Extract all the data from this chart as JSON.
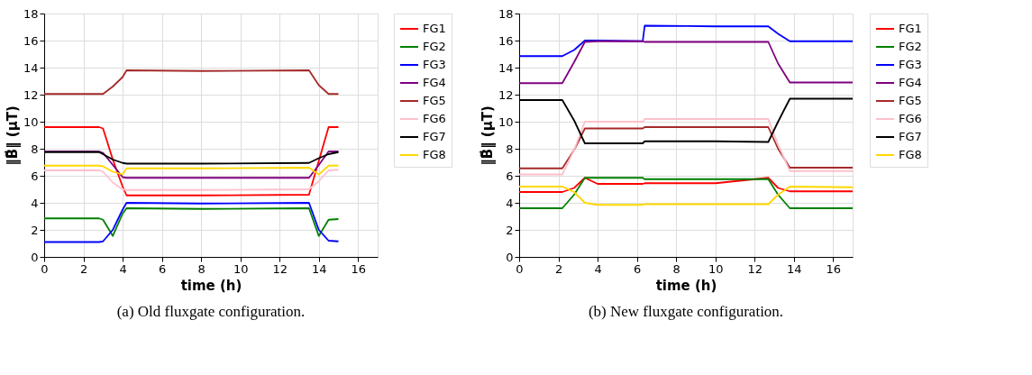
{
  "chart_data": [
    {
      "type": "line",
      "title": "(a) Old fluxgate configuration.",
      "xlabel": "time (h)",
      "ylabel": "‖B⃗‖ (μT)",
      "x": [
        0,
        2.8,
        3.0,
        3.5,
        4.0,
        4.2,
        8,
        13.5,
        14,
        14.5,
        15
      ],
      "xlim": [
        0,
        17
      ],
      "xticks": [
        0,
        2,
        4,
        6,
        8,
        10,
        12,
        14,
        16
      ],
      "ylim": [
        0,
        18
      ],
      "yticks": [
        0,
        2,
        4,
        6,
        8,
        10,
        12,
        14,
        16,
        18
      ],
      "grid": true,
      "legend": "right",
      "line_style": "solid",
      "marker": "none",
      "series": [
        {
          "name": "FG1",
          "color": "#ff0000",
          "values": [
            9.6,
            9.6,
            9.5,
            7.2,
            5.2,
            4.55,
            4.55,
            4.6,
            7.1,
            9.6,
            9.6
          ]
        },
        {
          "name": "FG2",
          "color": "#008000",
          "values": [
            2.85,
            2.85,
            2.75,
            1.55,
            3.2,
            3.6,
            3.55,
            3.6,
            1.55,
            2.75,
            2.8
          ]
        },
        {
          "name": "FG3",
          "color": "#0000ff",
          "values": [
            1.1,
            1.1,
            1.15,
            2.0,
            3.5,
            4.0,
            3.95,
            4.0,
            2.0,
            1.2,
            1.15
          ]
        },
        {
          "name": "FG4",
          "color": "#800080",
          "values": [
            7.8,
            7.8,
            7.7,
            6.8,
            5.9,
            5.85,
            5.85,
            5.85,
            6.8,
            7.8,
            7.8
          ]
        },
        {
          "name": "FG5",
          "color": "#a52a2a",
          "values": [
            12.05,
            12.05,
            12.05,
            12.6,
            13.3,
            13.8,
            13.75,
            13.8,
            12.7,
            12.05,
            12.05
          ]
        },
        {
          "name": "FG6",
          "color": "#ffc0cb",
          "values": [
            6.4,
            6.4,
            6.3,
            5.5,
            5.0,
            4.95,
            4.95,
            5.0,
            5.6,
            6.4,
            6.45
          ]
        },
        {
          "name": "FG7",
          "color": "#000000",
          "values": [
            7.75,
            7.75,
            7.6,
            7.2,
            6.95,
            6.9,
            6.9,
            6.95,
            7.3,
            7.6,
            7.75
          ]
        },
        {
          "name": "FG8",
          "color": "#ffd700",
          "values": [
            6.75,
            6.75,
            6.7,
            6.3,
            6.1,
            6.55,
            6.55,
            6.6,
            6.1,
            6.75,
            6.75
          ]
        }
      ]
    },
    {
      "type": "line",
      "title": "(b) New fluxgate configuration.",
      "xlabel": "time (h)",
      "ylabel": "‖B⃗‖ (μT)",
      "x": [
        0,
        2.2,
        2.8,
        3.35,
        4,
        6.3,
        6.4,
        10,
        12.7,
        13.2,
        13.8,
        17
      ],
      "xlim": [
        0,
        17
      ],
      "xticks": [
        0,
        2,
        4,
        6,
        8,
        10,
        12,
        14,
        16
      ],
      "ylim": [
        0,
        18
      ],
      "yticks": [
        0,
        2,
        4,
        6,
        8,
        10,
        12,
        14,
        16,
        18
      ],
      "grid": true,
      "legend": "right",
      "line_style": "solid",
      "marker": "none",
      "series": [
        {
          "name": "FG1",
          "color": "#ff0000",
          "values": [
            4.8,
            4.8,
            5.1,
            5.85,
            5.4,
            5.4,
            5.45,
            5.45,
            5.85,
            5.1,
            4.85,
            4.85
          ]
        },
        {
          "name": "FG2",
          "color": "#008000",
          "values": [
            3.6,
            3.6,
            4.6,
            5.85,
            5.85,
            5.85,
            5.75,
            5.75,
            5.75,
            4.6,
            3.6,
            3.6
          ]
        },
        {
          "name": "FG3",
          "color": "#0000ff",
          "values": [
            14.85,
            14.85,
            15.3,
            16.0,
            16.0,
            15.95,
            17.1,
            17.05,
            17.05,
            16.5,
            15.95,
            15.95
          ]
        },
        {
          "name": "FG4",
          "color": "#800080",
          "values": [
            12.85,
            12.85,
            14.4,
            15.9,
            15.95,
            15.95,
            15.9,
            15.9,
            15.9,
            14.3,
            12.9,
            12.9
          ]
        },
        {
          "name": "FG5",
          "color": "#a52a2a",
          "values": [
            6.55,
            6.55,
            7.9,
            9.5,
            9.5,
            9.5,
            9.6,
            9.6,
            9.6,
            8.0,
            6.6,
            6.6
          ]
        },
        {
          "name": "FG6",
          "color": "#ffc0cb",
          "values": [
            6.1,
            6.1,
            7.9,
            10.0,
            10.0,
            10.0,
            10.2,
            10.2,
            10.2,
            8.3,
            6.35,
            6.35
          ]
        },
        {
          "name": "FG7",
          "color": "#000000",
          "values": [
            11.6,
            11.6,
            10.1,
            8.4,
            8.4,
            8.4,
            8.55,
            8.55,
            8.5,
            10.0,
            11.7,
            11.7
          ]
        },
        {
          "name": "FG8",
          "color": "#ffd700",
          "values": [
            5.2,
            5.2,
            4.8,
            4.0,
            3.85,
            3.85,
            3.9,
            3.9,
            3.9,
            4.6,
            5.2,
            5.15
          ]
        }
      ]
    }
  ]
}
